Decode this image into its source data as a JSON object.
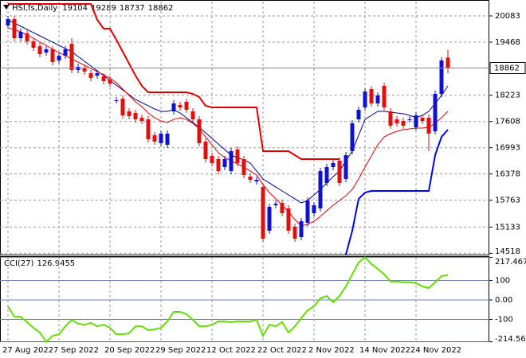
{
  "chart_data": [
    {
      "type": "candlestick",
      "title": "HSI,fs,Daily",
      "categories": [
        "27 Aug 2022",
        null,
        null,
        null,
        null,
        null,
        null,
        null,
        "7 Sep 2022",
        null,
        null,
        null,
        null,
        null,
        null,
        null,
        "20 Sep 2022",
        null,
        null,
        null,
        null,
        null,
        null,
        null,
        "29 Sep 2022",
        null,
        null,
        null,
        null,
        null,
        null,
        null,
        "12 Oct 2022",
        null,
        null,
        null,
        null,
        null,
        null,
        null,
        "22 Oct 2022",
        null,
        null,
        null,
        null,
        null,
        null,
        null,
        "2 Nov 2022",
        null,
        null,
        null,
        null,
        null,
        null,
        null,
        "14 Nov 2022",
        null,
        null,
        null,
        null,
        null,
        null,
        null,
        "24 Nov 2022",
        null,
        null,
        null,
        null,
        null
      ],
      "open": [
        19859,
        20008,
        19561,
        19673,
        19486,
        19374,
        19225,
        19300,
        19039,
        19150,
        19430,
        18815,
        18852,
        18740,
        18684,
        18666,
        18591,
        18106,
        18143,
        17845,
        17808,
        17696,
        17658,
        17285,
        17099,
        17062,
        17845,
        17994,
        18069,
        17845,
        17658,
        17136,
        16801,
        16726,
        16539,
        16446,
        16950,
        16726,
        16316,
        16204,
        16073,
        15047,
        15644,
        15700,
        15570,
        15141,
        14898,
        15234,
        15458,
        15570,
        16166,
        16539,
        16689,
        16260,
        16912,
        17658,
        17938,
        18367,
        18031,
        18442,
        17845,
        17658,
        17621,
        17658,
        17472,
        17696,
        17696,
        17379,
        18255,
        19104
      ],
      "high": [
        20083,
        20083,
        19785,
        19748,
        19561,
        19449,
        19375,
        19375,
        19225,
        19375,
        19560,
        18964,
        18927,
        18815,
        18815,
        18741,
        18666,
        18181,
        18218,
        17920,
        17883,
        17771,
        17733,
        17360,
        17398,
        17398,
        18106,
        18069,
        18144,
        17920,
        17733,
        17211,
        16876,
        16801,
        16801,
        16987,
        17025,
        16801,
        16391,
        16316,
        16148,
        15682,
        15757,
        15775,
        15645,
        15216,
        15346,
        15831,
        15719,
        16521,
        16614,
        16708,
        16764,
        16894,
        17640,
        17957,
        18386,
        18442,
        18293,
        18517,
        17920,
        17733,
        17696,
        17733,
        17827,
        17771,
        17771,
        18330,
        19114,
        19289
      ],
      "low": [
        19784,
        19486,
        19486,
        19411,
        19262,
        19113,
        19150,
        18926,
        18964,
        19075,
        18740,
        18740,
        18702,
        18553,
        18609,
        18479,
        18423,
        18031,
        17677,
        17658,
        17583,
        17546,
        17117,
        17061,
        17024,
        16987,
        17770,
        17863,
        17807,
        17583,
        17024,
        16651,
        16558,
        16371,
        16464,
        16371,
        16558,
        16278,
        16166,
        16129,
        14786,
        14972,
        15569,
        15383,
        14972,
        14786,
        14823,
        15159,
        15383,
        15495,
        16091,
        16464,
        16091,
        16185,
        16837,
        17583,
        17863,
        17956,
        17956,
        17863,
        17434,
        17490,
        17434,
        17583,
        17397,
        17546,
        16912,
        17304,
        18180,
        18737
      ],
      "close": [
        20008,
        19561,
        19710,
        19486,
        19337,
        19188,
        19300,
        19001,
        19150,
        19300,
        18815,
        18889,
        18777,
        18628,
        18740,
        18554,
        18498,
        18106,
        17752,
        17733,
        17658,
        17621,
        17192,
        17136,
        17323,
        17323,
        18031,
        17938,
        17882,
        17658,
        17099,
        16726,
        16633,
        16446,
        16726,
        16912,
        16633,
        16353,
        16241,
        16241,
        14861,
        15607,
        15682,
        15458,
        15047,
        14861,
        15271,
        15756,
        15644,
        16446,
        16539,
        16633,
        16166,
        16819,
        17565,
        17882,
        18311,
        18031,
        18218,
        17938,
        17509,
        17565,
        17509,
        17658,
        17752,
        17621,
        17323,
        18255,
        19039,
        18862
      ],
      "up_color": "#1010d0",
      "down_color": "#e01010",
      "series": [
        {
          "color": "#e00000",
          "width": 2,
          "values": [
            20363,
            20363,
            20363,
            20363,
            20363,
            20363,
            20363,
            20363,
            20363,
            20363,
            20363,
            20363,
            20363,
            20363,
            19990,
            19785,
            19785,
            19524,
            19244,
            18964,
            18684,
            18442,
            18293,
            18293,
            18293,
            18293,
            18293,
            18293,
            18293,
            18255,
            18181,
            17976,
            17938,
            17938,
            17938,
            17938,
            17938,
            17938,
            17938,
            17938,
            16912,
            16912,
            16912,
            16912,
            16912,
            16819,
            16726,
            16726,
            16726,
            16726,
            16726,
            16726,
            16726,
            null,
            null,
            null,
            null,
            null,
            null,
            null,
            null,
            null,
            null,
            null,
            null,
            null,
            null,
            null,
            null,
            null
          ]
        },
        {
          "color": "#0000ff",
          "width": 2,
          "values": [
            null,
            null,
            null,
            null,
            null,
            null,
            null,
            null,
            null,
            null,
            null,
            null,
            null,
            null,
            null,
            null,
            null,
            null,
            null,
            null,
            null,
            null,
            null,
            null,
            null,
            null,
            null,
            null,
            null,
            null,
            null,
            null,
            null,
            null,
            null,
            null,
            null,
            null,
            null,
            null,
            null,
            null,
            null,
            null,
            null,
            null,
            null,
            null,
            null,
            null,
            null,
            null,
            null,
            14488,
            15047,
            15794,
            15943,
            15980,
            15980,
            15980,
            15980,
            15980,
            15980,
            15980,
            15980,
            15980,
            15980,
            16819,
            17248,
            17416
          ]
        },
        {
          "color": "#000080",
          "width": 1,
          "values": [
            19990,
            19915,
            19841,
            19766,
            19691,
            19617,
            19542,
            19468,
            19393,
            19318,
            19244,
            19132,
            19020,
            18908,
            18796,
            18684,
            18572,
            18460,
            18348,
            18237,
            18125,
            18050,
            17976,
            17901,
            17845,
            17845,
            17882,
            17808,
            17696,
            17584,
            17472,
            17341,
            17211,
            17080,
            16950,
            16819,
            16763,
            16707,
            16633,
            16446,
            16260,
            16167,
            16073,
            15980,
            15887,
            15794,
            15700,
            15756,
            15887,
            16017,
            16167,
            16316,
            16446,
            16689,
            16912,
            17285,
            17658,
            17752,
            17845,
            17845,
            17826,
            17808,
            17789,
            17752,
            17696,
            17752,
            17845,
            18031,
            18218,
            18442
          ]
        },
        {
          "color": "#e00000",
          "width": 1,
          "values": [
            19803,
            19766,
            19710,
            19635,
            19561,
            19468,
            19393,
            19300,
            19225,
            19151,
            19076,
            19001,
            18927,
            18852,
            18778,
            18703,
            18628,
            18516,
            18367,
            18218,
            18069,
            17957,
            17808,
            17696,
            17621,
            17584,
            17658,
            17696,
            17658,
            17565,
            17435,
            17248,
            17062,
            16875,
            16763,
            16689,
            16614,
            16540,
            16446,
            16353,
            16130,
            15943,
            15794,
            15644,
            15495,
            15309,
            15159,
            15197,
            15271,
            15386,
            15517,
            15644,
            15756,
            15868,
            16017,
            16260,
            16540,
            16801,
            17062,
            17248,
            17323,
            17379,
            17416,
            17435,
            17454,
            17454,
            17472,
            17565,
            17696,
            17845
          ]
        }
      ],
      "ylim": [
        14488,
        20419
      ],
      "yticks": [
        20083,
        19468,
        18223,
        17608,
        16993,
        16378,
        15763,
        15133,
        14518
      ],
      "grid": true
    },
    {
      "type": "line",
      "title": "CCI(27)",
      "color": "#66dd00",
      "values": [
        -33,
        -86,
        -86,
        -114,
        -143,
        -167,
        -214.565,
        -184,
        -176,
        -135,
        -102,
        -122,
        -127,
        -118,
        -135,
        -127,
        -143,
        -176,
        -176,
        -171,
        -135,
        -135,
        -155,
        -151,
        -143,
        -110,
        -61,
        -61,
        -73,
        -102,
        -135,
        -135,
        -127,
        -110,
        -110,
        -114,
        -110,
        -110,
        -110,
        -102,
        -184,
        -127,
        -135,
        -114,
        -167,
        -135,
        -94,
        -53,
        -33,
        8,
        20,
        -12,
        20,
        69,
        131,
        192,
        217.4671,
        184,
        159,
        131,
        94,
        94,
        90,
        90,
        86,
        69,
        61,
        90,
        122,
        126.9455
      ],
      "ylim": [
        -216,
        220
      ],
      "yticks": [
        217.4671,
        100,
        {
          "value": 0,
          "label": "0.00"
        },
        -100,
        -214.565
      ],
      "grid": true
    }
  ]
}
